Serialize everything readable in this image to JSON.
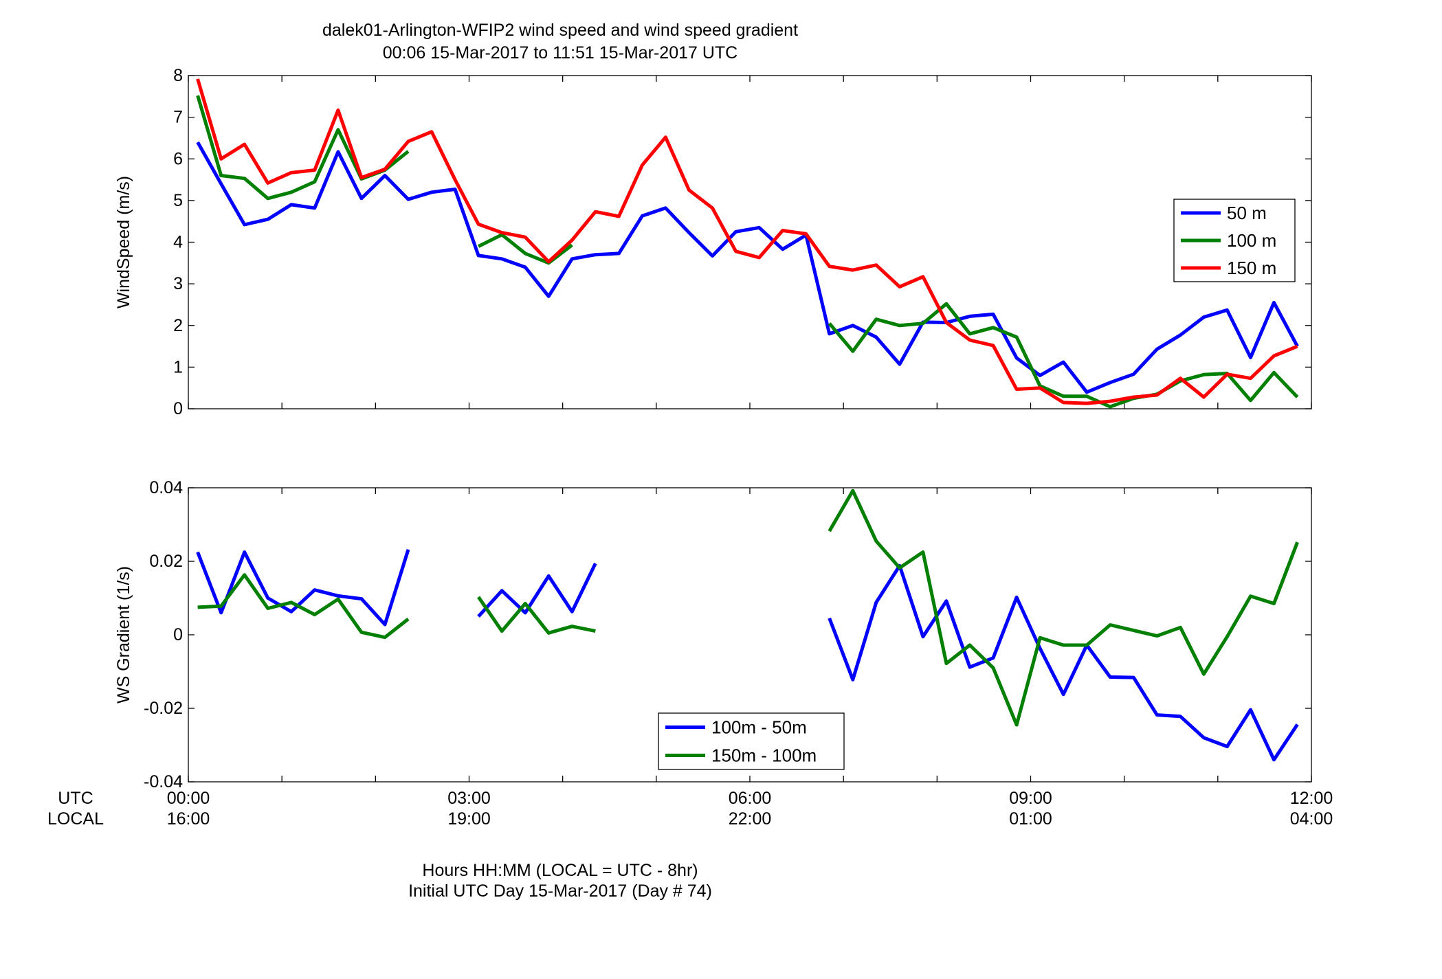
{
  "figure": {
    "title_line1": "dalek01-Arlington-WFIP2  wind speed and wind speed gradient",
    "title_line2": "00:06 15-Mar-2017 to 11:51 15-Mar-2017  UTC",
    "row_label_utc": "UTC",
    "row_label_local": "LOCAL",
    "xlabel_line1": "Hours HH:MM  (LOCAL = UTC - 8hr)",
    "xlabel_line2": "Initial UTC Day 15-Mar-2017 (Day # 74)",
    "x_ticks": [
      {
        "hour": 0,
        "utc": "00:00",
        "local": "16:00"
      },
      {
        "hour": 3,
        "utc": "03:00",
        "local": "19:00"
      },
      {
        "hour": 6,
        "utc": "06:00",
        "local": "22:00"
      },
      {
        "hour": 9,
        "utc": "09:00",
        "local": "01:00"
      },
      {
        "hour": 12,
        "utc": "12:00",
        "local": "04:00"
      }
    ]
  },
  "chart_data": [
    {
      "type": "line",
      "ylabel": "WindSpeed (m/s)",
      "xlim": [
        0,
        12
      ],
      "ylim": [
        0,
        8
      ],
      "yticks": [
        0,
        1,
        2,
        3,
        4,
        5,
        6,
        7,
        8
      ],
      "legend_position": "right",
      "x_hours": [
        0.1,
        0.35,
        0.6,
        0.85,
        1.1,
        1.35,
        1.6,
        1.85,
        2.1,
        2.35,
        2.6,
        2.85,
        3.1,
        3.35,
        3.6,
        3.85,
        4.1,
        4.35,
        4.6,
        4.85,
        5.1,
        5.35,
        5.6,
        5.85,
        6.1,
        6.35,
        6.6,
        6.85,
        7.1,
        7.35,
        7.6,
        7.85,
        8.1,
        8.35,
        8.6,
        8.85,
        9.1,
        9.35,
        9.6,
        9.85,
        10.1,
        10.35,
        10.6,
        10.85,
        11.1,
        11.35,
        11.6,
        11.85
      ],
      "series": [
        {
          "name": "50 m",
          "color": "#0000ff",
          "values": [
            6.4,
            5.4,
            4.42,
            4.55,
            4.9,
            4.82,
            6.17,
            5.05,
            5.6,
            5.03,
            5.2,
            5.27,
            3.68,
            3.6,
            3.4,
            2.7,
            3.6,
            3.7,
            3.73,
            4.63,
            4.82,
            4.23,
            3.67,
            4.25,
            4.35,
            3.83,
            4.17,
            1.8,
            2.0,
            1.72,
            1.07,
            2.08,
            2.07,
            2.22,
            2.27,
            1.22,
            0.8,
            1.12,
            0.4,
            0.63,
            0.83,
            1.43,
            1.77,
            2.2,
            2.37,
            1.23,
            2.55,
            1.5
          ]
        },
        {
          "name": "100 m",
          "color": "#007f00",
          "values": [
            7.52,
            5.6,
            5.53,
            5.05,
            5.2,
            5.45,
            6.7,
            5.52,
            5.73,
            6.18,
            null,
            null,
            3.9,
            4.18,
            3.73,
            3.5,
            3.93,
            null,
            null,
            null,
            null,
            null,
            null,
            null,
            null,
            null,
            null,
            2.05,
            1.38,
            2.15,
            2.0,
            2.05,
            2.52,
            1.8,
            1.95,
            1.72,
            0.55,
            0.3,
            0.3,
            0.05,
            0.25,
            0.35,
            0.67,
            0.82,
            0.85,
            0.2,
            0.87,
            0.28
          ]
        },
        {
          "name": "150 m",
          "color": "#ff0000",
          "values": [
            7.92,
            6.0,
            6.35,
            5.42,
            5.67,
            5.73,
            7.17,
            5.55,
            5.75,
            6.42,
            6.65,
            5.5,
            4.43,
            4.23,
            4.12,
            3.53,
            4.05,
            4.73,
            4.62,
            5.85,
            6.52,
            5.25,
            4.82,
            3.78,
            3.63,
            4.28,
            4.2,
            3.42,
            3.33,
            3.45,
            2.93,
            3.17,
            2.07,
            1.65,
            1.52,
            0.47,
            0.5,
            0.15,
            0.13,
            0.18,
            0.28,
            0.33,
            0.73,
            0.28,
            0.83,
            0.73,
            1.27,
            1.5
          ]
        }
      ]
    },
    {
      "type": "line",
      "ylabel": "WS Gradient (1/s)",
      "xlim": [
        0,
        12
      ],
      "ylim": [
        -0.04,
        0.04
      ],
      "yticks": [
        -0.04,
        -0.02,
        0,
        0.02,
        0.04
      ],
      "legend_position": "bottom-center",
      "x_hours": [
        0.1,
        0.35,
        0.6,
        0.85,
        1.1,
        1.35,
        1.6,
        1.85,
        2.1,
        2.35,
        2.6,
        2.85,
        3.1,
        3.35,
        3.6,
        3.85,
        4.1,
        4.35,
        4.6,
        4.85,
        5.1,
        5.35,
        5.6,
        5.85,
        6.1,
        6.35,
        6.6,
        6.85,
        7.1,
        7.35,
        7.6,
        7.85,
        8.1,
        8.35,
        8.6,
        8.85,
        9.1,
        9.35,
        9.6,
        9.85,
        10.1,
        10.35,
        10.6,
        10.85,
        11.1,
        11.35,
        11.6,
        11.85
      ],
      "series": [
        {
          "name": "100m - 50m",
          "color": "#0000ff",
          "values": [
            0.0225,
            0.006,
            0.0225,
            0.01,
            0.0063,
            0.0122,
            0.0106,
            0.0098,
            0.0028,
            0.0232,
            null,
            null,
            0.005,
            0.012,
            0.006,
            0.016,
            0.0063,
            0.0194,
            null,
            null,
            null,
            null,
            null,
            null,
            null,
            null,
            null,
            0.0045,
            -0.0122,
            0.0088,
            0.0188,
            -0.0005,
            0.0092,
            -0.0088,
            -0.0063,
            0.0102,
            -0.0037,
            -0.0162,
            -0.0028,
            -0.0115,
            -0.0116,
            -0.0218,
            -0.0222,
            -0.028,
            -0.0304,
            -0.0204,
            -0.034,
            -0.0244
          ]
        },
        {
          "name": "150m - 100m",
          "color": "#007f00",
          "values": [
            0.0075,
            0.0078,
            0.0163,
            0.0072,
            0.0088,
            0.0055,
            0.0097,
            0.0007,
            -0.0007,
            0.0043,
            null,
            null,
            0.0103,
            0.001,
            0.0085,
            0.0005,
            0.0023,
            0.001,
            null,
            null,
            null,
            null,
            null,
            null,
            null,
            null,
            null,
            0.0282,
            0.0392,
            0.0255,
            0.0182,
            0.0225,
            -0.0078,
            -0.0028,
            -0.009,
            -0.0245,
            -0.0008,
            -0.0028,
            -0.0028,
            0.0027,
            0.0012,
            -0.0003,
            0.002,
            -0.0107,
            -0.0005,
            0.0105,
            0.0085,
            0.0252
          ]
        }
      ]
    }
  ]
}
